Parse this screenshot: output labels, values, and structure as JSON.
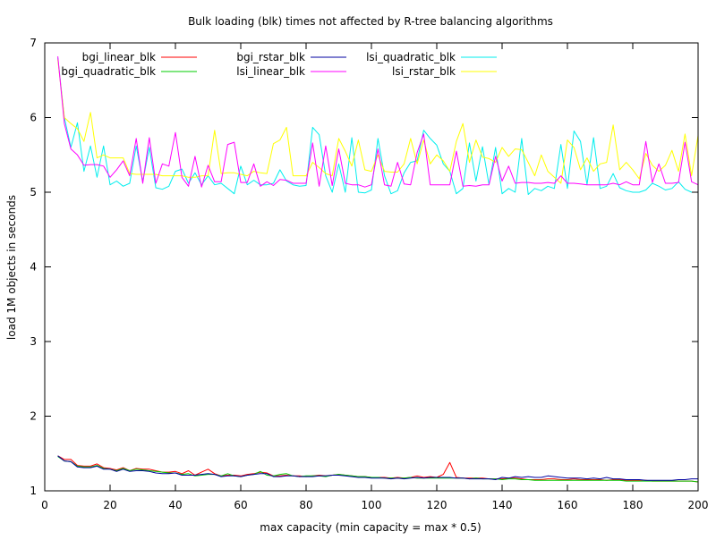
{
  "chart_data": {
    "type": "line",
    "title": "Bulk loading (blk) times not affected by R-tree balancing algorithms",
    "xlabel": "max capacity (min capacity = max * 0.5)",
    "ylabel": "load 1M objects in seconds",
    "xlim": [
      0,
      200
    ],
    "ylim": [
      1,
      7
    ],
    "xticks": [
      0,
      20,
      40,
      60,
      80,
      100,
      120,
      140,
      160,
      180,
      200
    ],
    "yticks": [
      1,
      2,
      3,
      4,
      5,
      6,
      7
    ],
    "grid": false,
    "legend_placement": "top (inside plot, three columns)",
    "x": [
      4,
      6,
      8,
      10,
      12,
      14,
      16,
      18,
      20,
      22,
      24,
      26,
      28,
      30,
      32,
      34,
      36,
      38,
      40,
      42,
      44,
      46,
      48,
      50,
      52,
      54,
      56,
      58,
      60,
      62,
      64,
      66,
      68,
      70,
      72,
      74,
      76,
      78,
      80,
      82,
      84,
      86,
      88,
      90,
      92,
      94,
      96,
      98,
      100,
      102,
      104,
      106,
      108,
      110,
      112,
      114,
      116,
      118,
      120,
      122,
      124,
      126,
      128,
      130,
      132,
      134,
      136,
      138,
      140,
      142,
      144,
      146,
      148,
      150,
      152,
      154,
      156,
      158,
      160,
      162,
      164,
      166,
      168,
      170,
      172,
      174,
      176,
      178,
      180,
      182,
      184,
      186,
      188,
      190,
      192,
      194,
      196,
      198,
      200
    ],
    "series": [
      {
        "name": "bgi_linear_blk",
        "color": "#ff0000",
        "values": [
          1.47,
          1.42,
          1.42,
          1.34,
          1.33,
          1.33,
          1.36,
          1.31,
          1.3,
          1.28,
          1.31,
          1.27,
          1.3,
          1.29,
          1.29,
          1.27,
          1.25,
          1.25,
          1.26,
          1.23,
          1.27,
          1.21,
          1.25,
          1.29,
          1.23,
          1.2,
          1.21,
          1.21,
          1.2,
          1.22,
          1.23,
          1.25,
          1.24,
          1.2,
          1.2,
          1.21,
          1.2,
          1.2,
          1.19,
          1.2,
          1.21,
          1.2,
          1.21,
          1.22,
          1.21,
          1.2,
          1.19,
          1.19,
          1.18,
          1.18,
          1.18,
          1.17,
          1.18,
          1.17,
          1.18,
          1.2,
          1.18,
          1.19,
          1.18,
          1.22,
          1.38,
          1.18,
          1.17,
          1.17,
          1.17,
          1.17,
          1.16,
          1.16,
          1.16,
          1.17,
          1.17,
          1.16,
          1.15,
          1.15,
          1.15,
          1.16,
          1.16,
          1.15,
          1.15,
          1.16,
          1.15,
          1.15,
          1.15,
          1.15,
          1.14,
          1.15,
          1.15,
          1.14,
          1.14,
          1.14,
          1.14,
          1.13,
          1.13,
          1.13,
          1.13,
          1.13,
          1.13,
          1.13,
          1.12
        ]
      },
      {
        "name": "bgi_quadratic_blk",
        "color": "#00cc00",
        "values": [
          1.46,
          1.4,
          1.39,
          1.33,
          1.32,
          1.32,
          1.34,
          1.3,
          1.29,
          1.27,
          1.3,
          1.27,
          1.29,
          1.28,
          1.27,
          1.26,
          1.25,
          1.24,
          1.24,
          1.22,
          1.23,
          1.2,
          1.21,
          1.22,
          1.22,
          1.2,
          1.23,
          1.2,
          1.19,
          1.21,
          1.22,
          1.26,
          1.21,
          1.2,
          1.22,
          1.23,
          1.2,
          1.19,
          1.2,
          1.2,
          1.2,
          1.19,
          1.21,
          1.22,
          1.21,
          1.2,
          1.19,
          1.19,
          1.18,
          1.18,
          1.17,
          1.17,
          1.17,
          1.17,
          1.18,
          1.17,
          1.17,
          1.17,
          1.17,
          1.17,
          1.17,
          1.17,
          1.17,
          1.16,
          1.17,
          1.16,
          1.16,
          1.16,
          1.15,
          1.16,
          1.16,
          1.15,
          1.15,
          1.14,
          1.14,
          1.14,
          1.14,
          1.14,
          1.14,
          1.14,
          1.14,
          1.14,
          1.14,
          1.14,
          1.14,
          1.14,
          1.14,
          1.13,
          1.13,
          1.13,
          1.13,
          1.13,
          1.13,
          1.13,
          1.13,
          1.13,
          1.13,
          1.13,
          1.12
        ]
      },
      {
        "name": "bgi_rstar_blk",
        "color": "#0000a0",
        "values": [
          1.47,
          1.4,
          1.39,
          1.32,
          1.31,
          1.31,
          1.33,
          1.29,
          1.29,
          1.26,
          1.29,
          1.26,
          1.27,
          1.27,
          1.26,
          1.24,
          1.23,
          1.23,
          1.24,
          1.21,
          1.21,
          1.21,
          1.22,
          1.23,
          1.22,
          1.19,
          1.2,
          1.2,
          1.19,
          1.21,
          1.22,
          1.23,
          1.23,
          1.19,
          1.19,
          1.2,
          1.2,
          1.19,
          1.19,
          1.19,
          1.2,
          1.2,
          1.21,
          1.21,
          1.2,
          1.19,
          1.18,
          1.18,
          1.17,
          1.17,
          1.17,
          1.16,
          1.17,
          1.16,
          1.17,
          1.18,
          1.17,
          1.18,
          1.18,
          1.18,
          1.18,
          1.17,
          1.17,
          1.16,
          1.16,
          1.16,
          1.16,
          1.15,
          1.18,
          1.17,
          1.19,
          1.18,
          1.19,
          1.18,
          1.18,
          1.2,
          1.19,
          1.18,
          1.17,
          1.17,
          1.17,
          1.16,
          1.17,
          1.16,
          1.18,
          1.16,
          1.16,
          1.15,
          1.15,
          1.15,
          1.14,
          1.14,
          1.14,
          1.14,
          1.14,
          1.15,
          1.15,
          1.16,
          1.16
        ]
      },
      {
        "name": "lsi_linear_blk",
        "color": "#ff00ff",
        "values": [
          6.82,
          5.92,
          5.58,
          5.5,
          5.36,
          5.37,
          5.37,
          5.35,
          5.2,
          5.3,
          5.42,
          5.22,
          5.72,
          5.12,
          5.73,
          5.12,
          5.38,
          5.35,
          5.8,
          5.2,
          5.08,
          5.48,
          5.07,
          5.36,
          5.14,
          5.14,
          5.64,
          5.67,
          5.13,
          5.13,
          5.38,
          5.08,
          5.14,
          5.09,
          5.17,
          5.16,
          5.12,
          5.12,
          5.12,
          5.66,
          5.08,
          5.62,
          5.09,
          5.58,
          5.12,
          5.1,
          5.1,
          5.07,
          5.1,
          5.58,
          5.1,
          5.08,
          5.4,
          5.11,
          5.1,
          5.53,
          5.78,
          5.1,
          5.1,
          5.1,
          5.1,
          5.55,
          5.08,
          5.09,
          5.08,
          5.1,
          5.1,
          5.48,
          5.15,
          5.35,
          5.12,
          5.13,
          5.13,
          5.12,
          5.12,
          5.13,
          5.12,
          5.22,
          5.12,
          5.12,
          5.11,
          5.1,
          5.1,
          5.1,
          5.1,
          5.12,
          5.1,
          5.14,
          5.1,
          5.1,
          5.68,
          5.13,
          5.38,
          5.12,
          5.12,
          5.13,
          5.67,
          5.14,
          5.1
        ]
      },
      {
        "name": "lsi_quadratic_blk",
        "color": "#00eeee",
        "values": [
          6.8,
          6.0,
          5.6,
          5.93,
          5.28,
          5.62,
          5.2,
          5.62,
          5.1,
          5.15,
          5.08,
          5.12,
          5.62,
          5.14,
          5.6,
          5.06,
          5.04,
          5.08,
          5.28,
          5.31,
          5.12,
          5.26,
          5.1,
          5.22,
          5.1,
          5.12,
          5.05,
          4.98,
          5.35,
          5.1,
          5.16,
          5.1,
          5.1,
          5.12,
          5.3,
          5.15,
          5.1,
          5.08,
          5.09,
          5.87,
          5.77,
          5.22,
          5.0,
          5.38,
          5.0,
          5.73,
          5.0,
          4.99,
          5.03,
          5.72,
          5.22,
          4.98,
          5.02,
          5.26,
          5.4,
          5.42,
          5.83,
          5.72,
          5.63,
          5.38,
          5.28,
          4.98,
          5.05,
          5.66,
          5.15,
          5.61,
          5.1,
          5.6,
          4.98,
          5.05,
          5.0,
          5.72,
          4.97,
          5.05,
          5.02,
          5.08,
          5.05,
          5.64,
          5.05,
          5.82,
          5.68,
          5.1,
          5.73,
          5.05,
          5.08,
          5.25,
          5.06,
          5.02,
          5.0,
          5.0,
          5.03,
          5.12,
          5.08,
          5.03,
          5.05,
          5.14,
          5.04,
          5.0,
          5.0
        ]
      },
      {
        "name": "lsi_rstar_blk",
        "color": "#ffff00",
        "values": [
          6.78,
          6.0,
          5.92,
          5.85,
          5.68,
          6.07,
          5.46,
          5.5,
          5.46,
          5.46,
          5.46,
          5.25,
          5.24,
          5.24,
          5.24,
          5.24,
          5.22,
          5.22,
          5.22,
          5.22,
          5.2,
          5.2,
          5.22,
          5.22,
          5.83,
          5.25,
          5.26,
          5.26,
          5.24,
          5.22,
          5.28,
          5.26,
          5.25,
          5.65,
          5.7,
          5.87,
          5.22,
          5.22,
          5.22,
          5.4,
          5.33,
          5.25,
          5.22,
          5.72,
          5.55,
          5.35,
          5.7,
          5.3,
          5.28,
          5.5,
          5.28,
          5.27,
          5.27,
          5.38,
          5.72,
          5.38,
          5.7,
          5.38,
          5.5,
          5.42,
          5.28,
          5.68,
          5.92,
          5.4,
          5.7,
          5.47,
          5.45,
          5.4,
          5.6,
          5.48,
          5.58,
          5.57,
          5.4,
          5.22,
          5.5,
          5.28,
          5.2,
          5.12,
          5.7,
          5.6,
          5.3,
          5.46,
          5.28,
          5.38,
          5.4,
          5.9,
          5.3,
          5.4,
          5.3,
          5.18,
          5.52,
          5.36,
          5.28,
          5.36,
          5.56,
          5.28,
          5.78,
          5.22,
          5.76
        ]
      }
    ]
  }
}
